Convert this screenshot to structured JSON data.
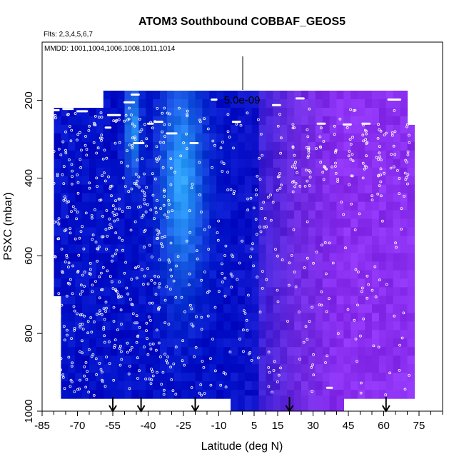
{
  "chart_data": {
    "type": "heatmap",
    "title": "ATOM3 Southbound COBBAF_GEOS5",
    "subtitle": "Flts: 2,3,4,5,6,7",
    "annotation_dates": "MMDD: 1001,1004,1006,1008,1011,1014",
    "scale_label": "5.0e-09",
    "xlabel": "Latitude (deg N)",
    "ylabel": "PSXC (mbar)",
    "xlim": [
      -85,
      85
    ],
    "ylim": [
      1000,
      50
    ],
    "x_ticks": [
      "-85",
      "-70",
      "-55",
      "-40",
      "-25",
      "-10",
      "5",
      "15",
      "30",
      "45",
      "60",
      "75"
    ],
    "x_tick_values": [
      -85,
      -70,
      -55,
      -40,
      -25,
      -10,
      5,
      15,
      30,
      45,
      60,
      75
    ],
    "y_ticks": [
      "200",
      "400",
      "600",
      "800",
      "1000"
    ],
    "y_tick_values": [
      200,
      400,
      600,
      800,
      1000
    ],
    "arrow_latitudes": [
      -55,
      -43,
      -20,
      20,
      61
    ],
    "data_extent": {
      "lat_min": -80,
      "lat_max": 71,
      "p_min": 175,
      "p_max": 960
    },
    "color_scale": [
      "#0010c8",
      "#2fa8ff",
      "#0a14c0",
      "#6b2ae0",
      "#8a2ef0"
    ],
    "colors": {
      "low": "#0010c8",
      "high": "#2fa8ff",
      "mid": "#6b2ae0",
      "north": "#8a2ef0"
    }
  }
}
